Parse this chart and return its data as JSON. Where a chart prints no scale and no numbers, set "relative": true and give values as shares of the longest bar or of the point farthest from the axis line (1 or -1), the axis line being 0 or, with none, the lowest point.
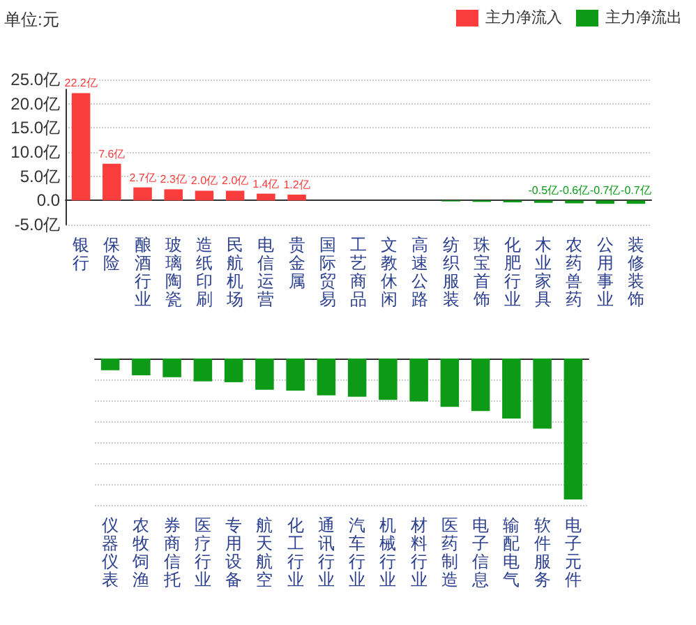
{
  "chart_data": [
    {
      "type": "bar",
      "ylabel": "单位:元",
      "legend": "top right",
      "grid": "y",
      "categories": [
        "银行",
        "保险",
        "酿酒行业",
        "玻璃陶瓷",
        "造纸印刷",
        "民航机场",
        "电信运营",
        "贵金属",
        "国际贸易",
        "工艺商品",
        "文教休闲",
        "高速公路",
        "纺织服装",
        "珠宝首饰",
        "化肥行业",
        "木业家具",
        "农药兽药",
        "公用事业",
        "装修装饰"
      ],
      "series": [
        {
          "name": "主力净流入",
          "color": "#f93c3c",
          "values": [
            22.2,
            7.6,
            2.7,
            2.3,
            2.0,
            2.0,
            1.4,
            1.2,
            null,
            null,
            null,
            null,
            null,
            null,
            null,
            null,
            null,
            null,
            null
          ],
          "value_labels": [
            "22.2亿",
            "7.6亿",
            "2.7亿",
            "2.3亿",
            "2.0亿",
            "2.0亿",
            "1.4亿",
            "1.2亿",
            null,
            null,
            null,
            null,
            null,
            null,
            null,
            null,
            null,
            null,
            null
          ]
        },
        {
          "name": "主力净流出",
          "color": "#0d9b17",
          "values": [
            null,
            null,
            null,
            null,
            null,
            null,
            null,
            null,
            null,
            null,
            null,
            null,
            -0.2,
            -0.3,
            -0.4,
            -0.5,
            -0.6,
            -0.7,
            -0.7
          ],
          "value_labels": [
            null,
            null,
            null,
            null,
            null,
            null,
            null,
            null,
            null,
            null,
            null,
            null,
            null,
            null,
            null,
            "-0.5亿",
            "-0.6亿",
            "-0.7亿",
            "-0.7亿"
          ]
        }
      ],
      "ylim": [
        -5,
        25
      ],
      "yticks": [
        {
          "value": -5,
          "label": "-5.0亿"
        },
        {
          "value": 0,
          "label": "0.0"
        },
        {
          "value": 5,
          "label": "5.0亿"
        },
        {
          "value": 10,
          "label": "10.0亿"
        },
        {
          "value": 15,
          "label": "15.0亿"
        },
        {
          "value": 20,
          "label": "20.0亿"
        },
        {
          "value": 25,
          "label": "25.0亿"
        }
      ]
    },
    {
      "type": "bar",
      "relative": true,
      "grid": "y",
      "tick_labels": "x",
      "categories": [
        "仪器仪表",
        "农牧饲渔",
        "券商信托",
        "医疗行业",
        "专用设备",
        "航天航空",
        "化工行业",
        "通讯行业",
        "汽车行业",
        "机械行业",
        "材料行业",
        "医药制造",
        "电子信息",
        "输配电气",
        "软件服务",
        "电子元件"
      ],
      "series": [
        {
          "color": "#0d9b17",
          "values": [
            -0.083,
            -0.119,
            -0.132,
            -0.162,
            -0.168,
            -0.221,
            -0.228,
            -0.261,
            -0.271,
            -0.294,
            -0.304,
            -0.343,
            -0.373,
            -0.426,
            -0.498,
            -1
          ]
        }
      ]
    }
  ]
}
